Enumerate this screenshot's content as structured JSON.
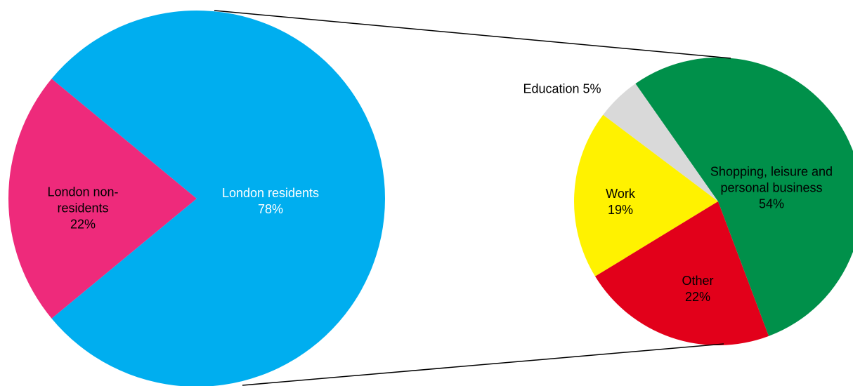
{
  "chart_data": [
    {
      "type": "pie",
      "categories": [
        "London residents",
        "London non-residents"
      ],
      "values": [
        78,
        22
      ],
      "value_labels": [
        "78%",
        "22%"
      ],
      "colors": [
        "#00aeef",
        "#ee2a7b"
      ]
    },
    {
      "type": "pie",
      "categories": [
        "Shopping, leisure and personal business",
        "Other",
        "Work",
        "Education"
      ],
      "values": [
        54,
        22,
        19,
        5
      ],
      "value_labels": [
        "54%",
        "22%",
        "19%",
        "5%"
      ],
      "colors": [
        "#00904a",
        "#e2001a",
        "#fff200",
        "#d9d9d9"
      ]
    }
  ]
}
